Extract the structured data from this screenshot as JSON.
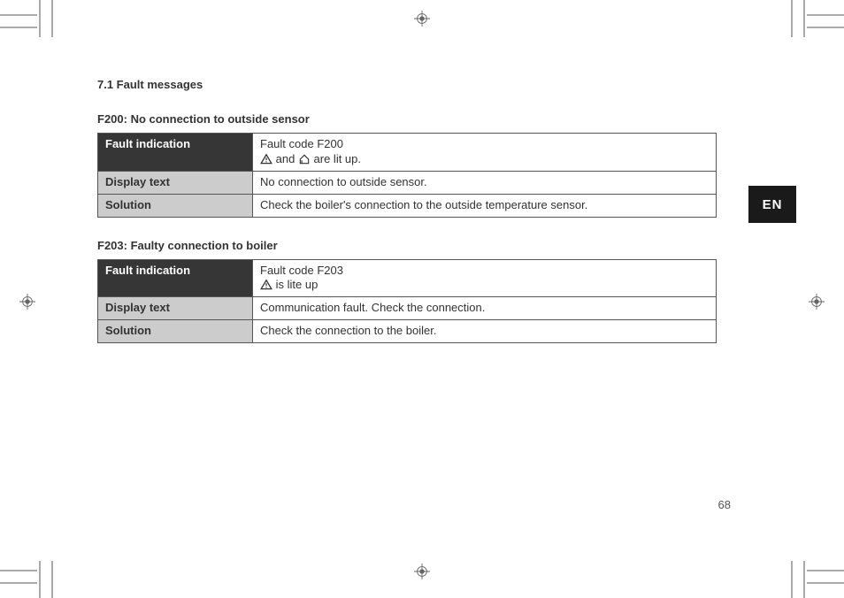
{
  "section_heading": "7.1  Fault messages",
  "language_tab": "EN",
  "page_number": "68",
  "faults": [
    {
      "heading": "F200: No connection to outside sensor",
      "rows": [
        {
          "label": "Fault indication",
          "label_class": "label-dark",
          "prefix": "Fault code F200",
          "icons": [
            "warning",
            "house"
          ],
          "suffix": " are lit up."
        },
        {
          "label": "Display text",
          "label_class": "label-gray",
          "value": "No connection to outside sensor."
        },
        {
          "label": "Solution",
          "label_class": "label-gray",
          "value": "Check the boiler's connection to the outside temperature sensor."
        }
      ]
    },
    {
      "heading": "F203: Faulty connection to boiler",
      "rows": [
        {
          "label": "Fault indication",
          "label_class": "label-dark",
          "prefix": "Fault code F203",
          "icons": [
            "warning"
          ],
          "suffix": " is lite up"
        },
        {
          "label": "Display text",
          "label_class": "label-gray",
          "value": "Communication fault. Check the connection."
        },
        {
          "label": "Solution",
          "label_class": "label-gray",
          "value": "Check the connection to the boiler."
        }
      ]
    }
  ],
  "colors": {
    "dark_row_bg": "#363636",
    "gray_row_bg": "#cccccc",
    "border": "#555555",
    "text": "#333333",
    "crop_mark": "#aaaaaa",
    "page_bg": "#ffffff"
  },
  "icon_joiner": " and "
}
